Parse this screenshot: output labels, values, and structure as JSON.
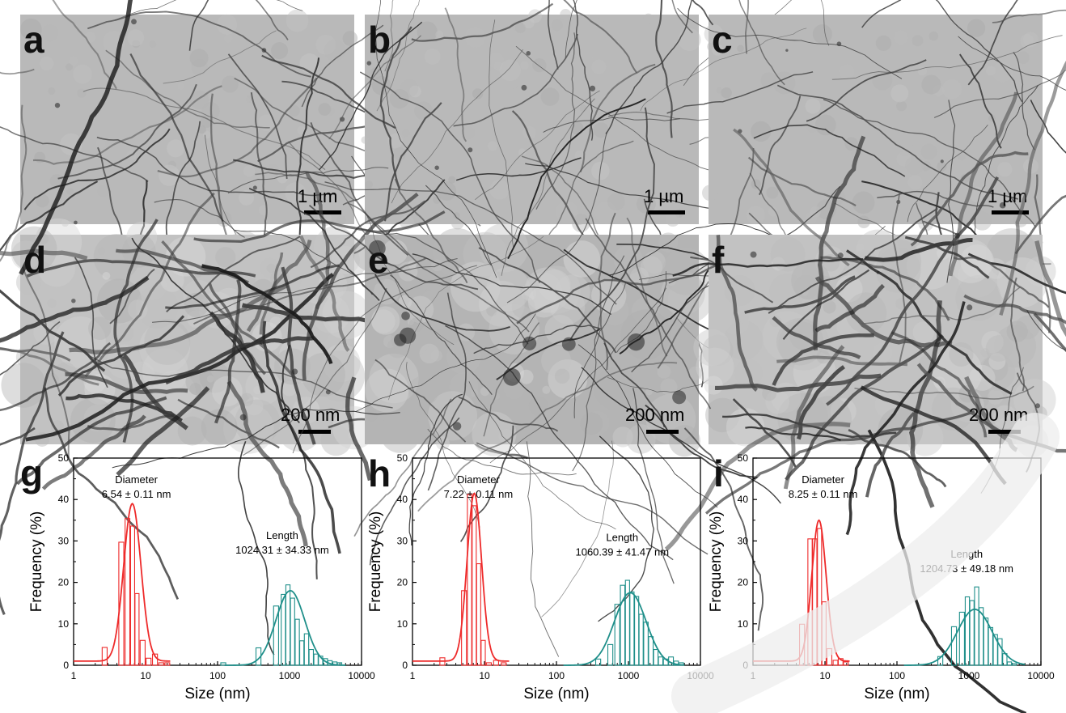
{
  "tem_panels": [
    {
      "label": "a",
      "scale": "1 µm",
      "style": "sparse"
    },
    {
      "label": "b",
      "scale": "1 µm",
      "style": "sparse"
    },
    {
      "label": "c",
      "scale": "1 µm",
      "style": "sparse"
    },
    {
      "label": "d",
      "scale": "200 nm",
      "style": "dense"
    },
    {
      "label": "e",
      "scale": "200 nm",
      "style": "mesh"
    },
    {
      "label": "f",
      "scale": "200 nm",
      "style": "dense"
    }
  ],
  "chart_data": [
    {
      "panel_label": "g",
      "type": "bar",
      "xscale": "log",
      "xlim": [
        1,
        10000
      ],
      "ylim": [
        0,
        50
      ],
      "xticks": [
        "1",
        "10",
        "100",
        "1000",
        "10000"
      ],
      "yticks": [
        "0",
        "10",
        "20",
        "30",
        "40",
        "50"
      ],
      "xlabel": "Size (nm)",
      "ylabel": "Frequency (%)",
      "annotations": [
        {
          "title": "Diameter",
          "value": "6.54 ± 0.11 nm"
        },
        {
          "title": "Length",
          "value": "1024.31 ± 34.33 nm"
        }
      ],
      "series": [
        {
          "color": "#ee2a2a",
          "bars": [
            {
              "x": 2.7,
              "y": 4.3
            },
            {
              "x": 4.6,
              "y": 29.7
            },
            {
              "x": 5.6,
              "y": 35.4
            },
            {
              "x": 6.6,
              "y": 33.6
            },
            {
              "x": 7.6,
              "y": 17.3
            },
            {
              "x": 9.1,
              "y": 6.0
            },
            {
              "x": 11.0,
              "y": 1.7
            },
            {
              "x": 13.5,
              "y": 2.7
            },
            {
              "x": 16.5,
              "y": 0.6
            },
            {
              "x": 20.0,
              "y": 0.6
            }
          ],
          "fit": {
            "center": 6.54,
            "log_sigma": 0.12,
            "peak": 38.0
          }
        },
        {
          "color": "#1f8f8a",
          "bars": [
            {
              "x": 120,
              "y": 0.6
            },
            {
              "x": 370,
              "y": 4.2
            },
            {
              "x": 650,
              "y": 14.3
            },
            {
              "x": 820,
              "y": 17.1
            },
            {
              "x": 950,
              "y": 19.4
            },
            {
              "x": 1100,
              "y": 16.2
            },
            {
              "x": 1280,
              "y": 11.1
            },
            {
              "x": 1480,
              "y": 5.9
            },
            {
              "x": 1720,
              "y": 7.6
            },
            {
              "x": 2000,
              "y": 3.8
            },
            {
              "x": 2330,
              "y": 2.7
            },
            {
              "x": 2700,
              "y": 2.2
            },
            {
              "x": 3150,
              "y": 1.6
            },
            {
              "x": 3650,
              "y": 1.1
            },
            {
              "x": 4250,
              "y": 0.8
            },
            {
              "x": 4950,
              "y": 0.6
            }
          ],
          "fit": {
            "center": 1024.31,
            "log_sigma": 0.2,
            "peak": 18.0
          }
        }
      ]
    },
    {
      "panel_label": "h",
      "type": "bar",
      "xscale": "log",
      "xlim": [
        1,
        10000
      ],
      "ylim": [
        0,
        50
      ],
      "xticks": [
        "1",
        "10",
        "100",
        "1000",
        "10000"
      ],
      "yticks": [
        "0",
        "10",
        "20",
        "30",
        "40",
        "50"
      ],
      "xlabel": "Size (nm)",
      "ylabel": "Frequency (%)",
      "annotations": [
        {
          "title": "Diameter",
          "value": "7.22 ± 0.11 nm"
        },
        {
          "title": "Length",
          "value": "1060.39 ± 41.47 nm"
        }
      ],
      "series": [
        {
          "color": "#ee2a2a",
          "bars": [
            {
              "x": 2.6,
              "y": 1.8
            },
            {
              "x": 5.2,
              "y": 18.0
            },
            {
              "x": 6.2,
              "y": 41.2
            },
            {
              "x": 7.2,
              "y": 38.5
            },
            {
              "x": 8.3,
              "y": 24.5
            },
            {
              "x": 9.6,
              "y": 6.0
            },
            {
              "x": 11.5,
              "y": 0.6
            },
            {
              "x": 14.5,
              "y": 1.2
            },
            {
              "x": 18.5,
              "y": 0.6
            }
          ],
          "fit": {
            "center": 7.22,
            "log_sigma": 0.1,
            "peak": 40.5
          }
        },
        {
          "color": "#1f8f8a",
          "bars": [
            {
              "x": 380,
              "y": 1.5
            },
            {
              "x": 560,
              "y": 5.0
            },
            {
              "x": 700,
              "y": 14.7
            },
            {
              "x": 830,
              "y": 19.3
            },
            {
              "x": 970,
              "y": 20.5
            },
            {
              "x": 1120,
              "y": 17.7
            },
            {
              "x": 1300,
              "y": 16.6
            },
            {
              "x": 1500,
              "y": 12.3
            },
            {
              "x": 1750,
              "y": 10.4
            },
            {
              "x": 2050,
              "y": 6.9
            },
            {
              "x": 2400,
              "y": 3.8
            },
            {
              "x": 2800,
              "y": 2.0
            },
            {
              "x": 3300,
              "y": 1.5
            },
            {
              "x": 3900,
              "y": 2.0
            },
            {
              "x": 4600,
              "y": 1.0
            },
            {
              "x": 5400,
              "y": 0.6
            }
          ],
          "fit": {
            "center": 1060.39,
            "log_sigma": 0.22,
            "peak": 17.5
          }
        }
      ]
    },
    {
      "panel_label": "i",
      "type": "bar",
      "xscale": "log",
      "xlim": [
        1,
        10000
      ],
      "ylim": [
        0,
        50
      ],
      "xticks": [
        "1",
        "10",
        "100",
        "1000",
        "10000"
      ],
      "yticks": [
        "0",
        "10",
        "20",
        "30",
        "40",
        "50"
      ],
      "xlabel": "Size (nm)",
      "ylabel": "Frequency (%)",
      "annotations": [
        {
          "title": "Diameter",
          "value": "8.25 ± 0.11 nm"
        },
        {
          "title": "Length",
          "value": "1204.73 ± 49.18 nm"
        }
      ],
      "series": [
        {
          "color": "#ee2a2a",
          "bars": [
            {
              "x": 4.8,
              "y": 9.9
            },
            {
              "x": 6.2,
              "y": 30.5
            },
            {
              "x": 7.2,
              "y": 30.5
            },
            {
              "x": 8.4,
              "y": 33.0
            },
            {
              "x": 9.7,
              "y": 15.3
            },
            {
              "x": 11.5,
              "y": 4.0
            },
            {
              "x": 14.0,
              "y": 1.2
            },
            {
              "x": 16.5,
              "y": 1.6
            },
            {
              "x": 19.5,
              "y": 0.8
            }
          ],
          "fit": {
            "center": 8.25,
            "log_sigma": 0.1,
            "peak": 34.0
          }
        },
        {
          "color": "#1f8f8a",
          "bars": [
            {
              "x": 400,
              "y": 2.1
            },
            {
              "x": 620,
              "y": 9.3
            },
            {
              "x": 800,
              "y": 12.8
            },
            {
              "x": 950,
              "y": 16.5
            },
            {
              "x": 1100,
              "y": 15.6
            },
            {
              "x": 1280,
              "y": 18.9
            },
            {
              "x": 1480,
              "y": 13.9
            },
            {
              "x": 1720,
              "y": 11.4
            },
            {
              "x": 2000,
              "y": 9.1
            },
            {
              "x": 2330,
              "y": 7.4
            },
            {
              "x": 2700,
              "y": 6.4
            },
            {
              "x": 3150,
              "y": 2.8
            },
            {
              "x": 3650,
              "y": 0.8
            },
            {
              "x": 4250,
              "y": 0.4
            }
          ],
          "fit": {
            "center": 1204.73,
            "log_sigma": 0.24,
            "peak": 13.5
          }
        }
      ]
    }
  ]
}
